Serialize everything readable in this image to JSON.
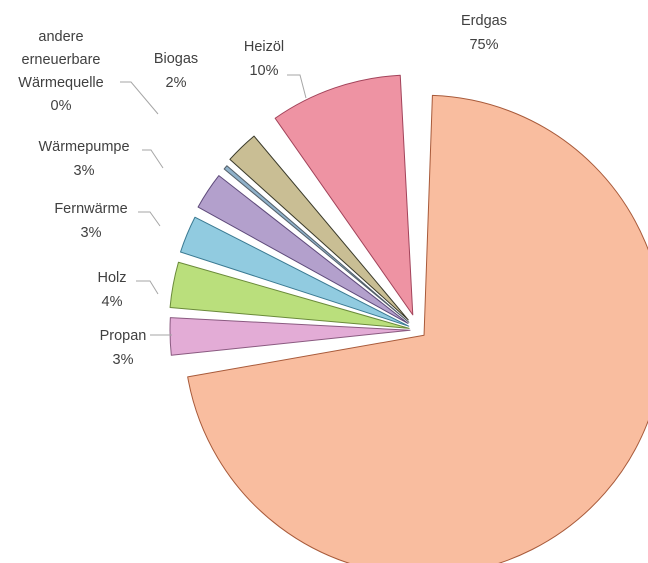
{
  "chart_data": {
    "type": "pie",
    "exploded": true,
    "slices": [
      {
        "name": "Erdgas",
        "value": 75,
        "color": "#f9bd9f",
        "stroke": "#a85a3a",
        "label_line1": "Erdgas",
        "label_line2": "75%"
      },
      {
        "name": "Propan",
        "value": 3,
        "color": "#e3acd6",
        "stroke": "#8a5a80",
        "label_line1": "Propan",
        "label_line2": "3%"
      },
      {
        "name": "Holz",
        "value": 4,
        "color": "#badf7c",
        "stroke": "#6a8a3a",
        "label_line1": "Holz",
        "label_line2": "4%"
      },
      {
        "name": "Fernwärme",
        "value": 3,
        "color": "#91cbe0",
        "stroke": "#3a7a92",
        "label_line1": "Fernwärme",
        "label_line2": "3%"
      },
      {
        "name": "Wärmepumpe",
        "value": 3,
        "color": "#b3a0cc",
        "stroke": "#5e4a7a",
        "label_line1": "Wärmepumpe",
        "label_line2": "3%"
      },
      {
        "name": "andere erneuerbare Wärmequelle",
        "value": 0,
        "color": "#8fb1c9",
        "stroke": "#54606a",
        "label_line1": "andere",
        "label_line2": "erneuerbare",
        "label_line3": "Wärmequelle",
        "label_line4": "0%"
      },
      {
        "name": "Biogas",
        "value": 2,
        "color": "#c9be94",
        "stroke": "#3a3a2a",
        "label_line1": "Biogas",
        "label_line2": "2%"
      },
      {
        "name": "Heizöl",
        "value": 10,
        "color": "#ee93a3",
        "stroke": "#a2435a",
        "label_line1": "Heizöl",
        "label_line2": "10%"
      }
    ]
  }
}
